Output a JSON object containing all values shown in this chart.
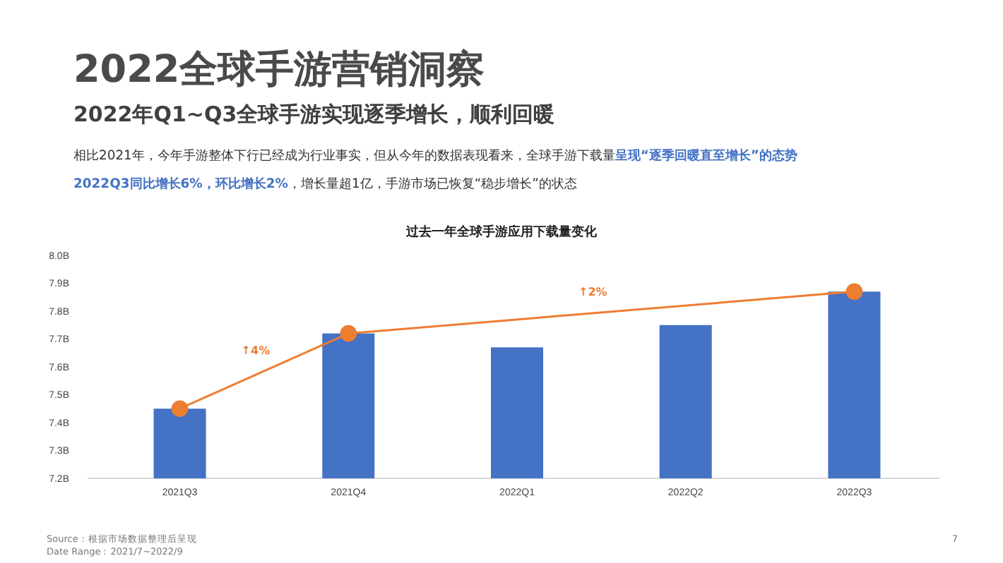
{
  "chart_data": {
    "type": "bar",
    "title": "2022全球手游营销洞察",
    "subtitle": "2022年Q1~Q3全球手游实现逐季增长，顺利回暖",
    "categories": [
      "2021Q3",
      "2021Q4",
      "2022Q1",
      "2022Q2",
      "2022Q3"
    ],
    "series": [
      {
        "color": "#4472c4",
        "values": [
          7.45,
          7.72,
          7.67,
          7.75,
          7.87
        ]
      },
      {
        "type": "line",
        "color": "#ed7d31",
        "values": [
          7.45,
          7.72,
          null,
          null,
          7.87
        ],
        "marker": "circle"
      }
    ],
    "ylim": [
      7.2,
      8.0
    ],
    "yticks": [
      {
        "value": 7.2,
        "label": "7.2B"
      },
      {
        "value": 7.3,
        "label": "7.3B"
      },
      {
        "value": 7.4,
        "label": "7.4B"
      },
      {
        "value": 7.5,
        "label": "7.5B"
      },
      {
        "value": 7.6,
        "label": "7.6B"
      },
      {
        "value": 7.7,
        "label": "7.7B"
      },
      {
        "value": 7.8,
        "label": "7.8B"
      },
      {
        "value": 7.9,
        "label": "7.9B"
      },
      {
        "value": 8.0,
        "label": "8.0B"
      }
    ],
    "grid": false,
    "annotations": [
      "过去一年全球手游应用下载量变化",
      "相比2021年，今年手游整体下行已经成为行业事实，但从今年的数据表现看来，全球手游下载量",
      "呈现“逐季回暖直至增长”的态势",
      "2022Q3同比增长6%，环比增长2%",
      "，增长量超1亿，手游市场已恢复“稳步增长”的状态",
      "↑4%",
      "↑2%",
      "Source：根据市场数据整理后呈现",
      "Date Range：2021/7~2022/9",
      "7"
    ]
  }
}
